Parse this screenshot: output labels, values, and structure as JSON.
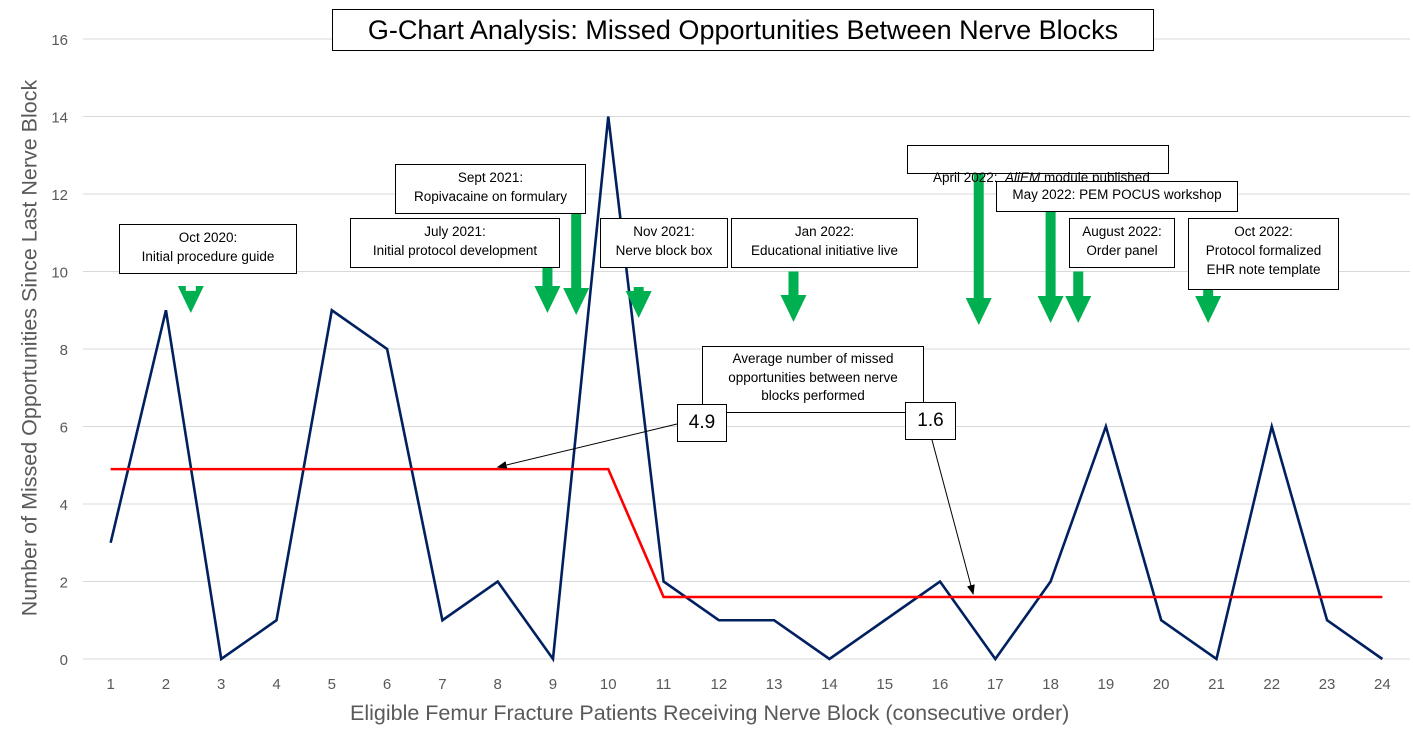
{
  "chart_data": {
    "type": "line",
    "title": "G-Chart Analysis: Missed Opportunities Between Nerve Blocks",
    "xlabel": "Eligible Femur Fracture Patients Receiving Nerve Block (consecutive order)",
    "ylabel": "Number of Missed Opportunities Since Last Nerve Block",
    "ylim": [
      0,
      16
    ],
    "yticks": [
      0,
      2,
      4,
      6,
      8,
      10,
      12,
      14,
      16
    ],
    "x": [
      1,
      2,
      3,
      4,
      5,
      6,
      7,
      8,
      9,
      10,
      11,
      12,
      13,
      14,
      15,
      16,
      17,
      18,
      19,
      20,
      21,
      22,
      23,
      24
    ],
    "grid": true,
    "legend": "none",
    "series": [
      {
        "values": [
          3,
          9,
          0,
          1,
          9,
          8,
          1,
          2,
          0,
          14,
          2,
          1,
          1,
          0,
          1,
          2,
          0,
          2,
          6,
          1,
          0,
          6,
          1,
          0
        ],
        "color": "#002060"
      },
      {
        "x": [
          1,
          10,
          11,
          24
        ],
        "values": [
          4.9,
          4.9,
          1.6,
          1.6
        ],
        "color": "#ff0000"
      }
    ],
    "average_labels": [
      {
        "text": "4.9",
        "value": 4.9
      },
      {
        "text": "1.6",
        "value": 1.6
      }
    ],
    "average_note": [
      "Average number of missed",
      "opportunities between nerve",
      "blocks performed"
    ],
    "annotations": [
      {
        "lines": [
          "Oct 2020:",
          "Initial procedure guide"
        ],
        "arrow_x": 2.45,
        "arrow_top": 9.5
      },
      {
        "lines": [
          "July 2021:",
          "Initial protocol development"
        ],
        "arrow_x": 8.9,
        "arrow_top": 10.1
      },
      {
        "lines": [
          "Sept 2021:",
          "Ropivacaine on formulary"
        ],
        "arrow_x": 9.42,
        "arrow_top": 12.2
      },
      {
        "lines": [
          "Nov 2021:",
          "Nerve block box"
        ],
        "arrow_x": 10.55,
        "arrow_top": 9.6
      },
      {
        "lines": [
          "Jan 2022:",
          "Educational initiative live"
        ],
        "arrow_x": 13.35,
        "arrow_top": 10.0
      },
      {
        "lines": [
          "April 2022:  ",
          "AliEM",
          " module published"
        ],
        "arrow_x": 16.7,
        "arrow_top": 12.6
      },
      {
        "lines": [
          "May 2022: PEM POCUS workshop"
        ],
        "arrow_x": 18.0,
        "arrow_top": 11.8
      },
      {
        "lines": [
          "August 2022:",
          "Order panel"
        ],
        "arrow_x": 18.5,
        "arrow_top": 10.0
      },
      {
        "lines": [
          "Oct 2022:",
          "Protocol formalized",
          "EHR note template"
        ],
        "arrow_x": 20.85,
        "arrow_top": 9.7
      }
    ],
    "colors": {
      "run": "#002060",
      "average": "#ff0000",
      "arrow": "#00b050",
      "grid": "#d9d9d9"
    }
  }
}
